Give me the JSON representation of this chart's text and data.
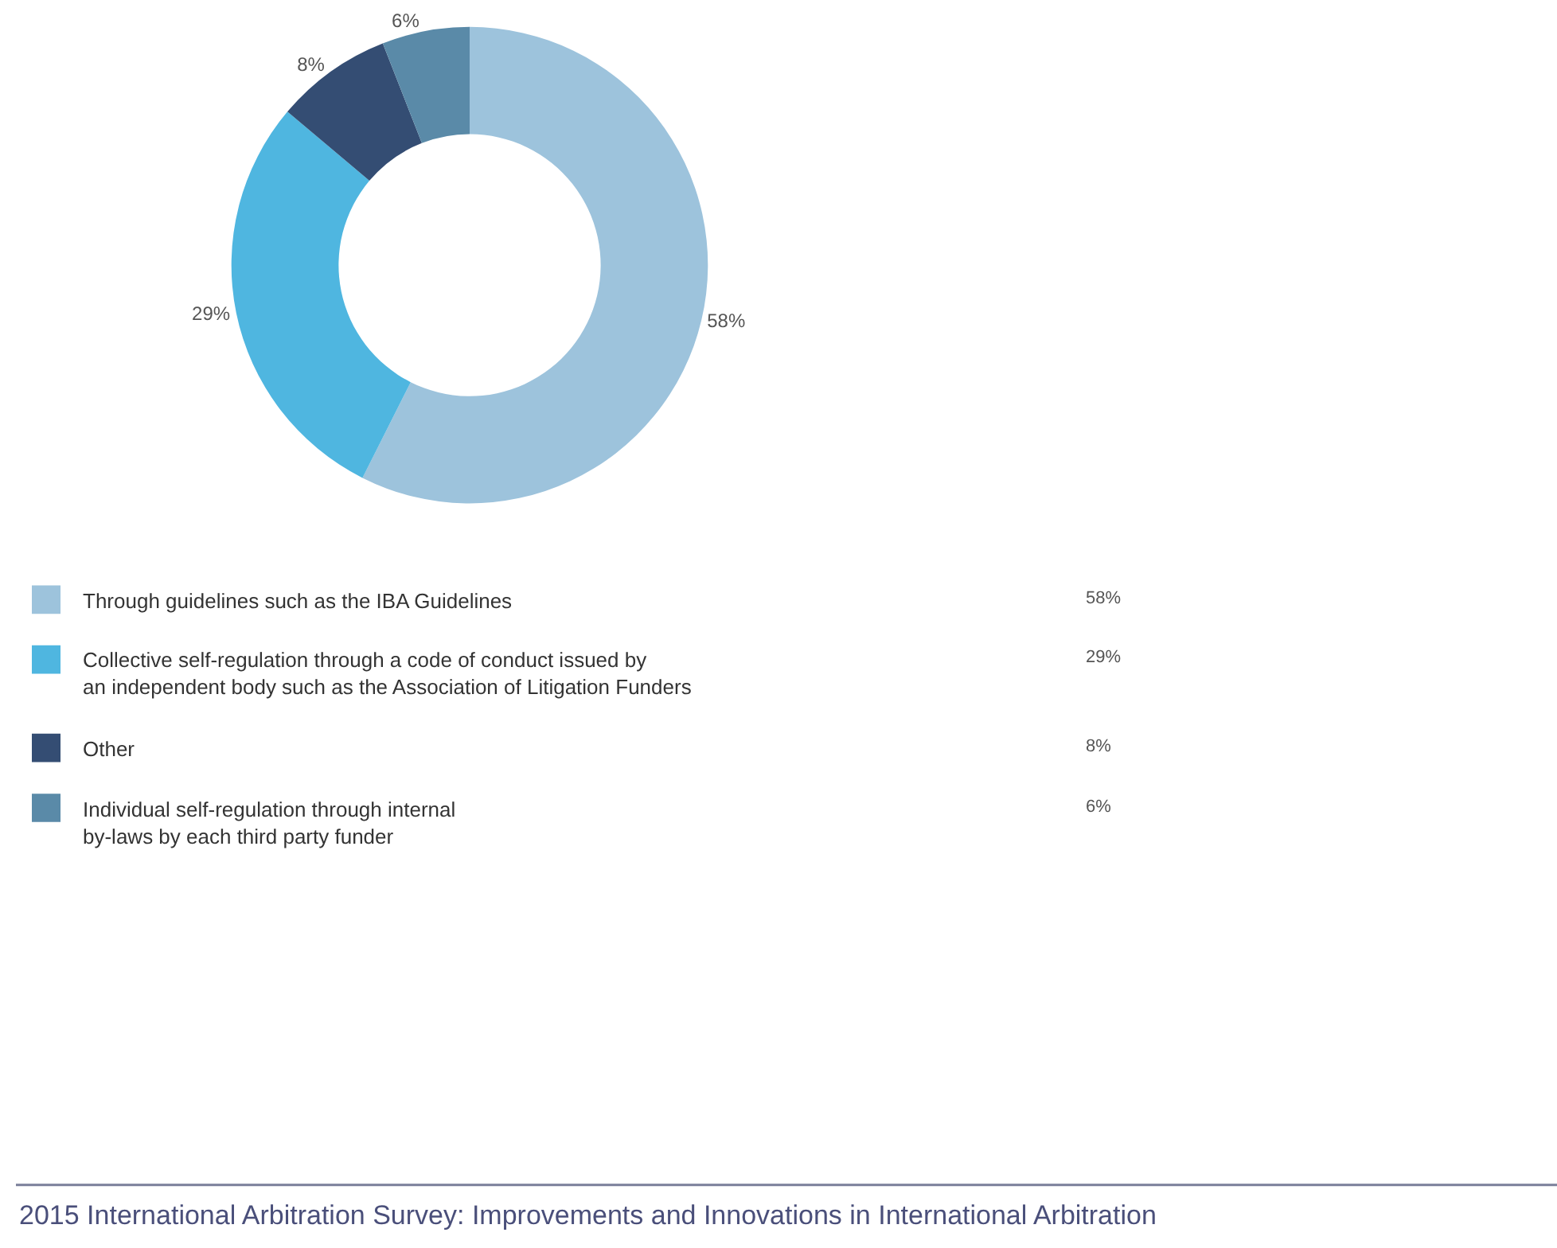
{
  "chart_data": {
    "type": "donut",
    "categories": [
      "Through guidelines such as the IBA Guidelines",
      "Collective self-regulation through a code of conduct issued by\nan independent body such as the Association of Litigation Funders",
      "Other",
      "Individual self-regulation through internal\nby-laws by each third party funder"
    ],
    "values": [
      58,
      29,
      8,
      6
    ],
    "colors": [
      "#9dc3dc",
      "#4fb6e0",
      "#344d73",
      "#5a8aa8"
    ],
    "value_labels": [
      "58%",
      "29%",
      "8%",
      "6%"
    ],
    "legend": "bottom",
    "annotations": [
      "2015 International Arbitration Survey: Improvements and Innovations in International Arbitration"
    ]
  }
}
